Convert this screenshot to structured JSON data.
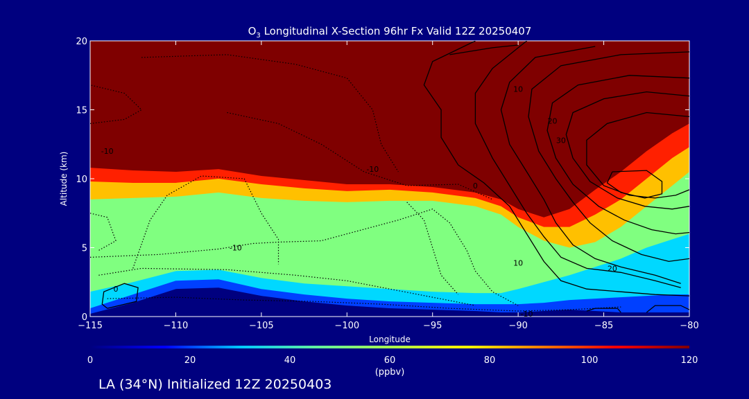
{
  "chart_data": {
    "type": "heatmap",
    "title_prefix": "O",
    "title_subscript": "3",
    "title_suffix": " Longitudinal X-Section 96hr  Fx Valid 12Z 20250407",
    "xlabel": "Longitude",
    "ylabel": "Altitude (km)",
    "xlim": [
      -115,
      -80
    ],
    "ylim": [
      0,
      20
    ],
    "x_ticks": [
      -115,
      -110,
      -105,
      -100,
      -95,
      -90,
      -85,
      -80
    ],
    "x_tick_labels": [
      "−115",
      "−110",
      "−105",
      "−100",
      "−95",
      "−90",
      "−85",
      "−80"
    ],
    "y_ticks": [
      0,
      5,
      10,
      15,
      20
    ],
    "y_tick_labels": [
      "0",
      "5",
      "10",
      "15",
      "20"
    ],
    "colorbar": {
      "min": 0,
      "max": 120,
      "ticks": [
        0,
        20,
        40,
        60,
        80,
        100,
        120
      ],
      "tick_labels": [
        "0",
        "20",
        "40",
        "60",
        "80",
        "100",
        "120"
      ],
      "unit_label": "(ppbv)",
      "colors": [
        "#00007f",
        "#0000ff",
        "#00c8ff",
        "#60f0a0",
        "#a8ff50",
        "#ffff00",
        "#ff8000",
        "#ff0000",
        "#7f0000"
      ]
    },
    "ozone_boundaries": {
      "description_rows": "upper edge of layers in km, per longitude",
      "longitude": [
        -115,
        -112.5,
        -110,
        -107.5,
        -105,
        -102.5,
        -100,
        -97.5,
        -95,
        -92.5,
        -91,
        -90,
        -88.5,
        -87,
        -85.5,
        -84,
        -82.5,
        -81,
        -80
      ],
      "lt20": [
        0.2,
        1.0,
        2.0,
        2.1,
        1.5,
        1.1,
        0.8,
        0.6,
        0.5,
        0.4,
        0.3,
        0.3,
        0.4,
        0.5,
        0.4,
        0.3,
        0.3,
        0.3,
        0.3
      ],
      "lt40": [
        0.6,
        1.6,
        2.6,
        2.7,
        2.0,
        1.6,
        1.3,
        1.1,
        1.0,
        0.9,
        0.9,
        0.9,
        1.0,
        1.2,
        1.3,
        1.4,
        1.5,
        1.6,
        1.6
      ],
      "lt60": [
        1.8,
        2.5,
        3.3,
        3.4,
        2.8,
        2.4,
        2.2,
        2.0,
        1.8,
        1.7,
        1.7,
        2.0,
        2.5,
        3.0,
        3.6,
        4.2,
        5.0,
        5.6,
        6.0
      ],
      "lt80": [
        8.5,
        8.6,
        8.7,
        9.0,
        8.6,
        8.4,
        8.3,
        8.4,
        8.4,
        8.0,
        7.4,
        6.5,
        5.5,
        5.0,
        5.4,
        6.5,
        8.0,
        9.5,
        10.5
      ],
      "lt100": [
        9.8,
        9.7,
        9.7,
        10.0,
        9.6,
        9.3,
        9.1,
        9.2,
        9.0,
        8.6,
        8.0,
        7.2,
        6.5,
        6.5,
        7.4,
        8.5,
        10.0,
        11.5,
        12.3
      ],
      "lt120": [
        10.8,
        10.6,
        10.5,
        10.7,
        10.2,
        9.9,
        9.6,
        9.6,
        9.4,
        9.0,
        8.5,
        7.8,
        7.2,
        7.8,
        9.2,
        10.5,
        12.0,
        13.3,
        14.0
      ]
    },
    "contour_labels": [
      {
        "text": "-10",
        "lon": -114,
        "alt": 12.0
      },
      {
        "text": "-10",
        "lon": -98.5,
        "alt": 10.7
      },
      {
        "text": "0",
        "lon": -92.5,
        "alt": 9.5
      },
      {
        "text": "-10",
        "lon": -106.5,
        "alt": 5.0
      },
      {
        "text": "0",
        "lon": -113.5,
        "alt": 2.0
      },
      {
        "text": "-10",
        "lon": -89.5,
        "alt": 0.2
      },
      {
        "text": "10",
        "lon": -90,
        "alt": 16.5
      },
      {
        "text": "20",
        "lon": -88,
        "alt": 14.2
      },
      {
        "text": "30",
        "lon": -87.5,
        "alt": 12.8
      },
      {
        "text": "10",
        "lon": -90,
        "alt": 3.9
      },
      {
        "text": "20",
        "lon": -84.5,
        "alt": 3.5
      }
    ],
    "contours": [
      {
        "style": "dotted",
        "points": [
          [
            -115,
            14.0
          ],
          [
            -113,
            14.3
          ],
          [
            -112,
            15.0
          ],
          [
            -113,
            16.2
          ],
          [
            -115,
            16.8
          ]
        ]
      },
      {
        "style": "dotted",
        "points": [
          [
            -112,
            18.8
          ],
          [
            -107,
            19.0
          ],
          [
            -103,
            18.3
          ],
          [
            -100,
            17.3
          ],
          [
            -98.5,
            15.0
          ],
          [
            -98,
            12.5
          ],
          [
            -97,
            10.5
          ]
        ]
      },
      {
        "style": "dotted",
        "points": [
          [
            -107,
            14.8
          ],
          [
            -104,
            14.0
          ],
          [
            -101.5,
            12.5
          ],
          [
            -99,
            10.5
          ],
          [
            -96.5,
            9.5
          ],
          [
            -93.5,
            9.6
          ],
          [
            -91.5,
            8.5
          ]
        ]
      },
      {
        "style": "dotted",
        "points": [
          [
            -112.5,
            3.5
          ],
          [
            -111.5,
            7.0
          ],
          [
            -110.5,
            8.8
          ],
          [
            -108.5,
            10.2
          ],
          [
            -106,
            10.0
          ],
          [
            -105,
            7.5
          ],
          [
            -104,
            5.6
          ],
          [
            -104,
            3.8
          ]
        ]
      },
      {
        "style": "dotted",
        "points": [
          [
            -115,
            4.3
          ],
          [
            -111,
            4.5
          ],
          [
            -107.5,
            4.9
          ],
          [
            -105.5,
            5.3
          ],
          [
            -104,
            5.4
          ],
          [
            -101.5,
            5.5
          ],
          [
            -100,
            6.0
          ],
          [
            -97,
            7.0
          ],
          [
            -95,
            7.8
          ],
          [
            -94,
            6.8
          ],
          [
            -93,
            4.8
          ],
          [
            -92.5,
            3.3
          ],
          [
            -91.5,
            1.8
          ],
          [
            -90,
            0.8
          ]
        ]
      },
      {
        "style": "dotted",
        "points": [
          [
            -96.5,
            8.3
          ],
          [
            -95.5,
            7.0
          ],
          [
            -95,
            5.0
          ],
          [
            -94.5,
            3.0
          ],
          [
            -93.5,
            1.6
          ]
        ]
      },
      {
        "style": "dotted",
        "points": [
          [
            -114.5,
            3.0
          ],
          [
            -112,
            3.5
          ],
          [
            -107,
            3.4
          ],
          [
            -103,
            3.0
          ],
          [
            -100,
            2.6
          ],
          [
            -97.5,
            2.0
          ],
          [
            -95,
            1.4
          ],
          [
            -92.5,
            0.8
          ]
        ]
      },
      {
        "style": "dotted",
        "points": [
          [
            -114,
            1.3
          ],
          [
            -110,
            1.4
          ],
          [
            -106,
            1.2
          ],
          [
            -102,
            1.1
          ],
          [
            -98,
            0.9
          ],
          [
            -94,
            0.6
          ],
          [
            -90,
            0.4
          ],
          [
            -87,
            0.5
          ],
          [
            -84,
            0.7
          ]
        ]
      },
      {
        "style": "dotted",
        "points": [
          [
            -115,
            7.5
          ],
          [
            -114,
            7.2
          ],
          [
            -113.5,
            5.5
          ],
          [
            -114.5,
            4.8
          ]
        ]
      },
      {
        "style": "solid",
        "points": [
          [
            -114,
            0.6
          ],
          [
            -112.3,
            1.1
          ],
          [
            -112.2,
            2.1
          ],
          [
            -113,
            2.4
          ],
          [
            -114.2,
            1.8
          ],
          [
            -114.3,
            0.9
          ],
          [
            -114,
            0.6
          ]
        ]
      },
      {
        "style": "solid",
        "points": [
          [
            -94,
            19.0
          ],
          [
            -91.5,
            19.5
          ],
          [
            -90,
            19.7
          ]
        ]
      },
      {
        "style": "solid",
        "points": [
          [
            -92.5,
            20.0
          ],
          [
            -95,
            18.5
          ],
          [
            -95.5,
            16.8
          ],
          [
            -94.5,
            15.0
          ],
          [
            -94.5,
            13.0
          ],
          [
            -93.5,
            11.0
          ],
          [
            -92,
            9.7
          ],
          [
            -90.5,
            8.0
          ],
          [
            -89.5,
            6.0
          ],
          [
            -88.5,
            4.0
          ],
          [
            -87.5,
            2.6
          ],
          [
            -86,
            2.0
          ],
          [
            -84,
            1.8
          ],
          [
            -82,
            1.6
          ],
          [
            -80,
            1.5
          ]
        ]
      },
      {
        "style": "solid",
        "points": [
          [
            -89.5,
            20.0
          ],
          [
            -91.5,
            18.0
          ],
          [
            -92.5,
            16.2
          ],
          [
            -92.5,
            14.0
          ],
          [
            -91.5,
            11.5
          ],
          [
            -90.5,
            9.5
          ],
          [
            -89.5,
            7.5
          ],
          [
            -88.5,
            5.8
          ],
          [
            -87.5,
            4.3
          ],
          [
            -86,
            3.5
          ],
          [
            -84,
            3.2
          ],
          [
            -82,
            2.6
          ],
          [
            -80.5,
            2.1
          ]
        ]
      },
      {
        "style": "solid",
        "points": [
          [
            -85.5,
            19.6
          ],
          [
            -89,
            18.8
          ],
          [
            -90.5,
            17.0
          ],
          [
            -91,
            15.0
          ],
          [
            -90.5,
            12.5
          ],
          [
            -89.5,
            10.5
          ],
          [
            -88.5,
            8.5
          ],
          [
            -87.8,
            6.8
          ],
          [
            -86.8,
            5.2
          ],
          [
            -85.5,
            4.2
          ],
          [
            -84,
            3.6
          ],
          [
            -82,
            3.0
          ],
          [
            -80.5,
            2.4
          ]
        ]
      },
      {
        "style": "solid",
        "points": [
          [
            -80,
            19.2
          ],
          [
            -84,
            19.0
          ],
          [
            -87.5,
            18.2
          ],
          [
            -89.2,
            16.5
          ],
          [
            -89.4,
            14.5
          ],
          [
            -88.8,
            12.0
          ],
          [
            -87.8,
            10.0
          ],
          [
            -86.8,
            8.3
          ],
          [
            -85.8,
            6.8
          ],
          [
            -84.5,
            5.5
          ],
          [
            -82.8,
            4.5
          ],
          [
            -81.2,
            4.0
          ],
          [
            -80,
            4.2
          ]
        ]
      },
      {
        "style": "solid",
        "points": [
          [
            -80,
            17.3
          ],
          [
            -83.5,
            17.5
          ],
          [
            -86.5,
            16.8
          ],
          [
            -88,
            15.5
          ],
          [
            -88.3,
            13.5
          ],
          [
            -87.8,
            11.5
          ],
          [
            -86.8,
            9.6
          ],
          [
            -85.3,
            8.0
          ],
          [
            -83.8,
            7.0
          ],
          [
            -82.2,
            6.3
          ],
          [
            -80.8,
            6.0
          ],
          [
            -80,
            6.1
          ]
        ]
      },
      {
        "style": "solid",
        "points": [
          [
            -80,
            16.0
          ],
          [
            -82.5,
            16.3
          ],
          [
            -85,
            15.8
          ],
          [
            -86.8,
            14.8
          ],
          [
            -87.2,
            13.2
          ],
          [
            -86.8,
            11.5
          ],
          [
            -85.8,
            9.8
          ],
          [
            -84.2,
            8.6
          ],
          [
            -82.6,
            8.0
          ],
          [
            -81,
            7.8
          ],
          [
            -80,
            8.0
          ]
        ]
      },
      {
        "style": "solid",
        "points": [
          [
            -80,
            14.5
          ],
          [
            -82.5,
            14.8
          ],
          [
            -84.8,
            14.0
          ],
          [
            -86,
            12.8
          ],
          [
            -86,
            11.0
          ],
          [
            -85,
            9.5
          ],
          [
            -83.5,
            8.8
          ],
          [
            -82,
            8.6
          ],
          [
            -80.8,
            8.8
          ],
          [
            -80,
            9.2
          ]
        ]
      },
      {
        "style": "solid",
        "points": [
          [
            -84.5,
            10.5
          ],
          [
            -82.5,
            10.6
          ],
          [
            -81.6,
            9.8
          ],
          [
            -81.6,
            8.9
          ],
          [
            -82.6,
            8.6
          ],
          [
            -84,
            9.0
          ],
          [
            -84.8,
            9.7
          ],
          [
            -84.5,
            10.5
          ]
        ]
      },
      {
        "style": "solid",
        "points": [
          [
            -86,
            0.4
          ],
          [
            -85.5,
            0.6
          ],
          [
            -84.2,
            0.6
          ],
          [
            -84,
            0.3
          ]
        ]
      },
      {
        "style": "solid",
        "points": [
          [
            -82.5,
            0.3
          ],
          [
            -82,
            0.8
          ],
          [
            -80.5,
            0.8
          ],
          [
            -80,
            0.5
          ]
        ]
      }
    ]
  },
  "footer": {
    "text": "LA (34°N) Initialized 12Z 20250403"
  }
}
